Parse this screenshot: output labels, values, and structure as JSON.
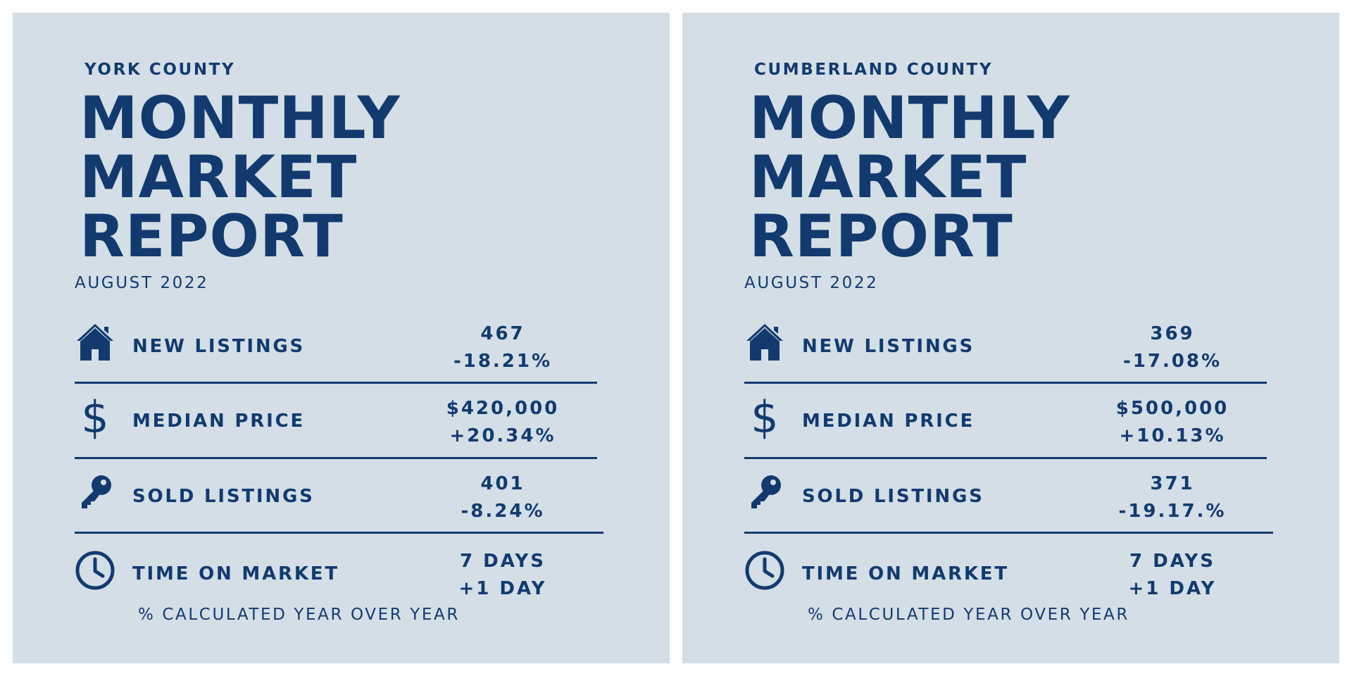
{
  "colors": {
    "background": "#ffffff",
    "panel": "#d3dee6",
    "accent": "#123a6f"
  },
  "reports": [
    {
      "county": "YORK COUNTY",
      "title_lines": [
        "MONTHLY",
        "MARKET",
        "REPORT"
      ],
      "period": "AUGUST 2022",
      "metrics": [
        {
          "icon": "house-icon",
          "label": "NEW LISTINGS",
          "value": "467",
          "change": "-18.21%"
        },
        {
          "icon": "dollar-icon",
          "label": "MEDIAN PRICE",
          "value": "$420,000",
          "change": "+20.34%"
        },
        {
          "icon": "key-icon",
          "label": "SOLD LISTINGS",
          "value": "401",
          "change": "-8.24%"
        },
        {
          "icon": "clock-icon",
          "label": "TIME ON MARKET",
          "value": "7 DAYS",
          "change": "+1 DAY"
        }
      ],
      "note": "% CALCULATED YEAR OVER YEAR"
    },
    {
      "county": "CUMBERLAND COUNTY",
      "title_lines": [
        "MONTHLY",
        "MARKET",
        "REPORT"
      ],
      "period": "AUGUST 2022",
      "metrics": [
        {
          "icon": "house-icon",
          "label": "NEW LISTINGS",
          "value": "369",
          "change": "-17.08%"
        },
        {
          "icon": "dollar-icon",
          "label": "MEDIAN PRICE",
          "value": "$500,000",
          "change": "+10.13%"
        },
        {
          "icon": "key-icon",
          "label": "SOLD LISTINGS",
          "value": "371",
          "change": "-19.17.%"
        },
        {
          "icon": "clock-icon",
          "label": "TIME ON MARKET",
          "value": "7 DAYS",
          "change": "+1 DAY"
        }
      ],
      "note": "% CALCULATED YEAR OVER YEAR"
    }
  ]
}
